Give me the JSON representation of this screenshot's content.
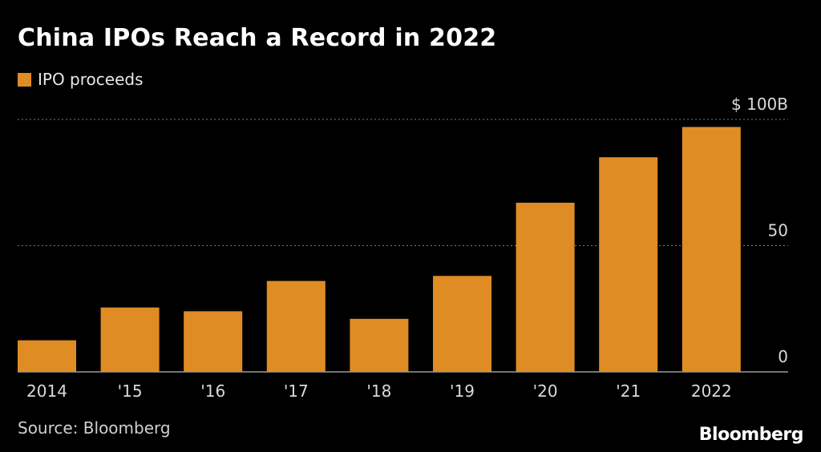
{
  "title": "China IPOs Reach a Record in 2022",
  "legend": {
    "label": "IPO proceeds"
  },
  "colors": {
    "bar": "#e08c25",
    "grid": "#7a7a7a",
    "axis": "#9a9a9a"
  },
  "source": "Source: Bloomberg",
  "brand": "Bloomberg",
  "chart_data": {
    "type": "bar",
    "title": "China IPOs Reach a Record in 2022",
    "xlabel": "",
    "ylabel": "",
    "categories": [
      "2014",
      "'15",
      "'16",
      "'17",
      "'18",
      "'19",
      "'20",
      "'21",
      "2022"
    ],
    "series": [
      {
        "name": "IPO proceeds",
        "values": [
          12.5,
          25.5,
          24,
          36,
          21,
          38,
          67,
          85,
          97
        ]
      }
    ],
    "ylim": [
      0,
      100
    ],
    "yticks": [
      {
        "value": 0,
        "label": "0"
      },
      {
        "value": 50,
        "label": "50"
      },
      {
        "value": 100,
        "label": "$ 100B"
      }
    ],
    "grid": true,
    "legend_position": "top-left"
  }
}
